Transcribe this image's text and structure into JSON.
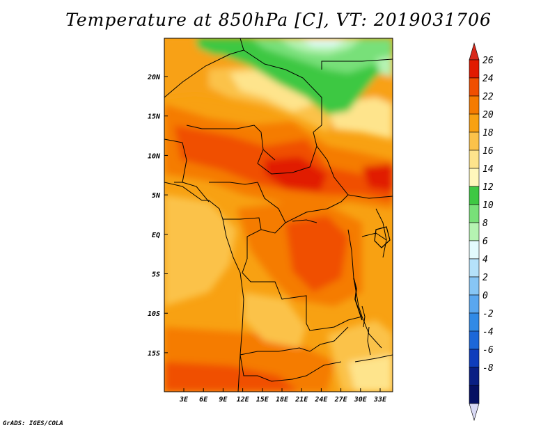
{
  "title": "Temperature at 850hPa [C], VT: 2019031706",
  "credit": "GrADS: IGES/COLA",
  "map": {
    "lat_labels": [
      "20N",
      "15N",
      "10N",
      "5N",
      "EQ",
      "5S",
      "10S",
      "15S"
    ],
    "lon_labels": [
      "3E",
      "6E",
      "9E",
      "12E",
      "15E",
      "18E",
      "21E",
      "24E",
      "27E",
      "30E",
      "33E"
    ]
  },
  "colorbar": {
    "labels": [
      "26",
      "24",
      "22",
      "20",
      "18",
      "16",
      "14",
      "12",
      "10",
      "8",
      "6",
      "4",
      "2",
      "0",
      "-2",
      "-4",
      "-6",
      "-8"
    ],
    "colors": [
      "#e11a00",
      "#f04f00",
      "#f57b00",
      "#f8a112",
      "#fbc24a",
      "#fee48c",
      "#fff7bc",
      "#3ec843",
      "#78e079",
      "#b5f3b2",
      "#e3fbfd",
      "#b5e2fa",
      "#87c6f5",
      "#5aa7ef",
      "#318ae6",
      "#1c67d8",
      "#0f3dbc",
      "#0a1f84",
      "#061063"
    ],
    "top_arrow_color": "#d8281a",
    "bottom_arrow_color": "#d9d9f4"
  }
}
